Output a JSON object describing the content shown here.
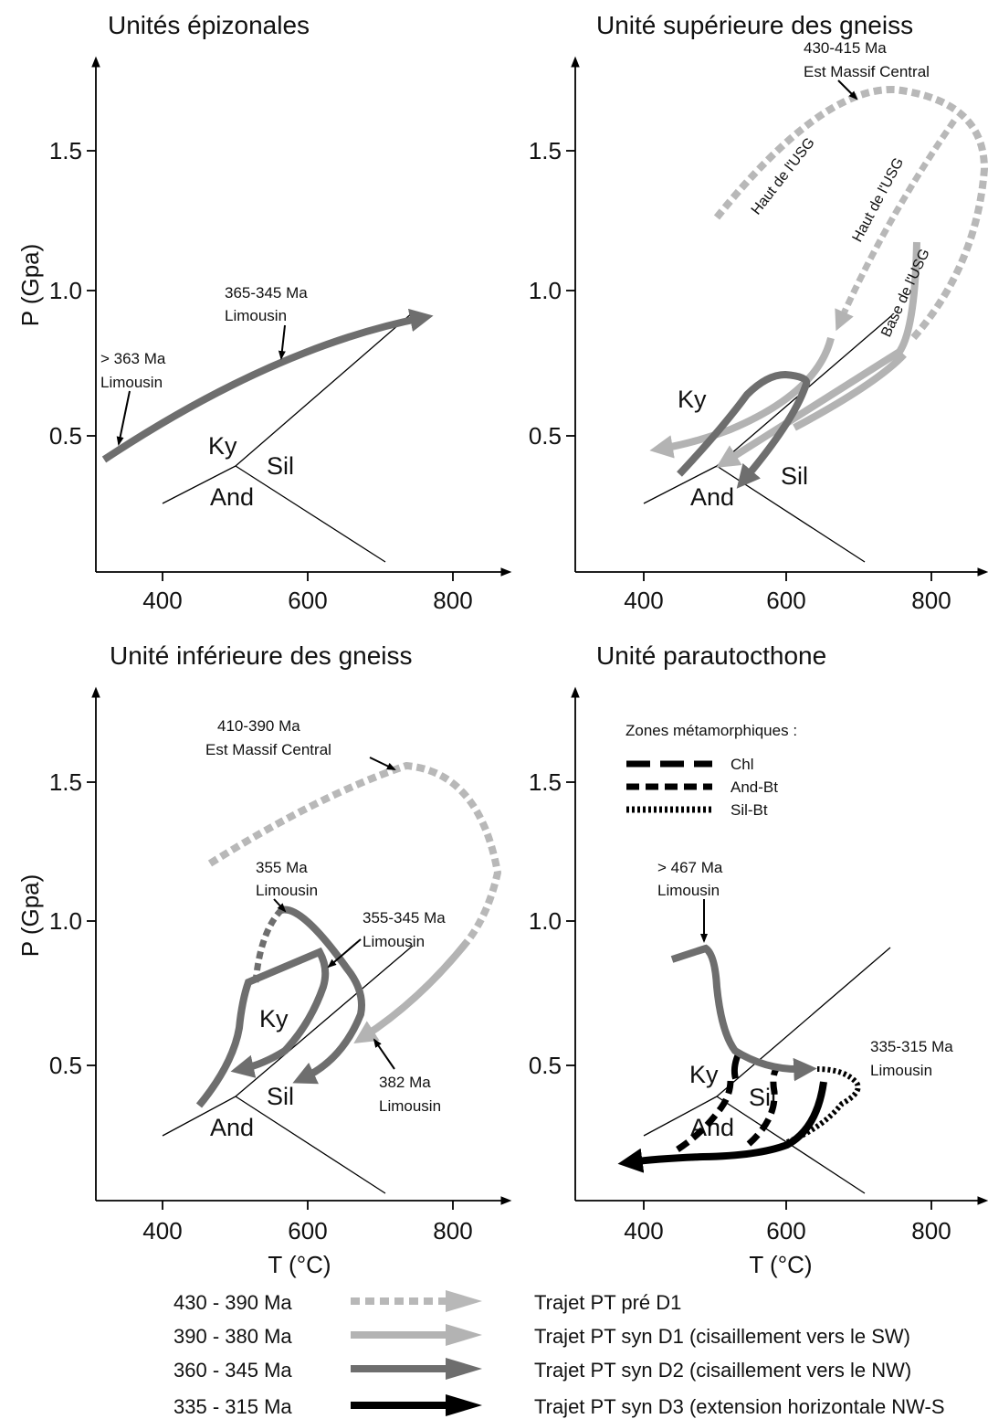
{
  "panels": {
    "tl": {
      "title": "Unités épizonales",
      "y_label": "P (Gpa)",
      "ann_a1": "> 363 Ma",
      "ann_a2": "Limousin",
      "ann_b1": "365-345 Ma",
      "ann_b2": "Limousin"
    },
    "tr": {
      "title": "Unité supérieure des gneiss",
      "ann_a1": "430-415 Ma",
      "ann_a2": "Est Massif Central",
      "rot1": "Haut de l'USG",
      "rot2": "Haut de l'USG",
      "rot3": "Base de l'USG"
    },
    "bl": {
      "title": "Unité inférieure des gneiss",
      "y_label": "P (Gpa)",
      "x_label": "T (°C)",
      "ann_a1": "410-390 Ma",
      "ann_a2": "Est Massif Central",
      "ann_b1": "355 Ma",
      "ann_b2": "Limousin",
      "ann_c1": "355-345 Ma",
      "ann_c2": "Limousin",
      "ann_d1": "382 Ma",
      "ann_d2": "Limousin"
    },
    "br": {
      "title": "Unité parautocthone",
      "x_label": "T (°C)",
      "zones_title": "Zones métamorphiques :",
      "zone_1": "Chl",
      "zone_2": "And-Bt",
      "zone_3": "Sil-Bt",
      "ann_a1": "> 467 Ma",
      "ann_a2": "Limousin",
      "ann_b1": "335-315 Ma",
      "ann_b2": "Limousin"
    }
  },
  "axes": {
    "x_ticks": [
      "400",
      "600",
      "800"
    ],
    "y_ticks": [
      "1.5",
      "1.0",
      "0.5"
    ]
  },
  "minerals": {
    "ky": "Ky",
    "sil": "Sil",
    "and": "And"
  },
  "legend": [
    {
      "age": "430 - 390 Ma",
      "desc": "Trajet PT pré D1"
    },
    {
      "age": "390 - 380 Ma",
      "desc": "Trajet PT syn D1 (cisaillement vers le SW)"
    },
    {
      "age": "360 - 345 Ma",
      "desc": "Trajet PT syn D2 (cisaillement vers le NW)"
    },
    {
      "age": "335 - 315 Ma",
      "desc": "Trajet PT syn D3 (extension horizontale NW-S"
    }
  ],
  "colors": {
    "pre_d1": "#b8b8b8",
    "syn_d1": "#b3b3b3",
    "syn_d2": "#6e6e6e",
    "syn_d3": "#000000"
  }
}
